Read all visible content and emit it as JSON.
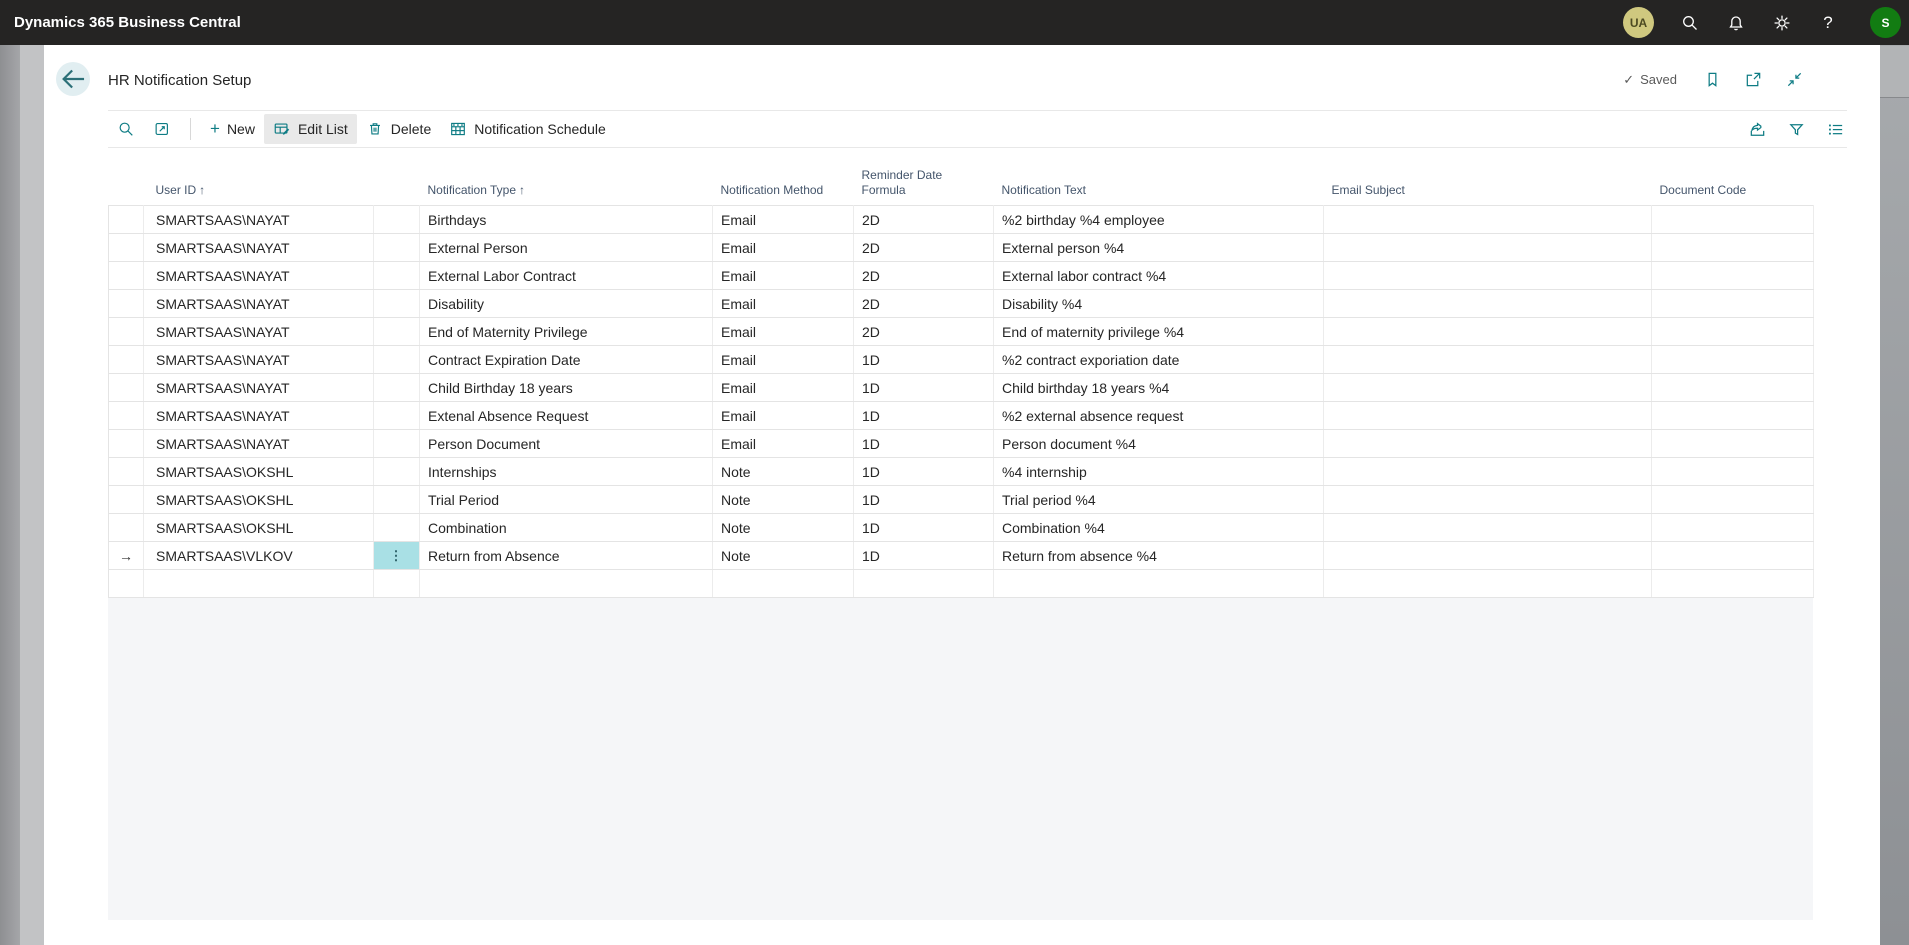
{
  "app": {
    "title": "Dynamics 365 Business Central"
  },
  "topbar": {
    "avatar_company": "UA",
    "avatar_user": "S"
  },
  "icons": {
    "sort_asc": "↑",
    "row_pointer": "→",
    "row_menu": "⋮",
    "check": "✓",
    "help": "?"
  },
  "colors": {
    "accent": "#0e7c84",
    "topbar_bg": "#252423",
    "selected_cell": "#a9e0e5",
    "active_button_bg": "#e9e9e9",
    "avatar_company_bg": "#cfc87f",
    "avatar_user_bg": "#127c12"
  },
  "page": {
    "title": "HR Notification Setup",
    "save_status": "Saved"
  },
  "toolbar": {
    "new_label": "New",
    "edit_list_label": "Edit List",
    "delete_label": "Delete",
    "notification_schedule_label": "Notification Schedule"
  },
  "table": {
    "columns": [
      {
        "key": "selector",
        "label": "",
        "sorted": false
      },
      {
        "key": "user_id",
        "label": "User ID",
        "sorted": true
      },
      {
        "key": "mini",
        "label": "",
        "sorted": false
      },
      {
        "key": "type",
        "label": "Notification Type",
        "sorted": true
      },
      {
        "key": "method",
        "label": "Notification Method",
        "sorted": false
      },
      {
        "key": "formula",
        "label": "Reminder Date Formula",
        "sorted": false
      },
      {
        "key": "text",
        "label": "Notification Text",
        "sorted": false
      },
      {
        "key": "email_subject",
        "label": "Email Subject",
        "sorted": false
      },
      {
        "key": "document_code",
        "label": "Document Code",
        "sorted": false
      }
    ],
    "rows": [
      {
        "user_id": "SMARTSAAS\\NAYAT",
        "type": "Birthdays",
        "method": "Email",
        "formula": "2D",
        "text": "%2 birthday %4 employee",
        "email_subject": "",
        "document_code": "",
        "current": false
      },
      {
        "user_id": "SMARTSAAS\\NAYAT",
        "type": "External Person",
        "method": "Email",
        "formula": "2D",
        "text": "External person %4",
        "email_subject": "",
        "document_code": "",
        "current": false
      },
      {
        "user_id": "SMARTSAAS\\NAYAT",
        "type": "External Labor Contract",
        "method": "Email",
        "formula": "2D",
        "text": "External labor contract %4",
        "email_subject": "",
        "document_code": "",
        "current": false
      },
      {
        "user_id": "SMARTSAAS\\NAYAT",
        "type": "Disability",
        "method": "Email",
        "formula": "2D",
        "text": "Disability %4",
        "email_subject": "",
        "document_code": "",
        "current": false
      },
      {
        "user_id": "SMARTSAAS\\NAYAT",
        "type": "End of Maternity Privilege",
        "method": "Email",
        "formula": "2D",
        "text": "End of maternity privilege %4",
        "email_subject": "",
        "document_code": "",
        "current": false
      },
      {
        "user_id": "SMARTSAAS\\NAYAT",
        "type": "Contract Expiration Date",
        "method": "Email",
        "formula": "1D",
        "text": "%2 contract exporiation date",
        "email_subject": "",
        "document_code": "",
        "current": false
      },
      {
        "user_id": "SMARTSAAS\\NAYAT",
        "type": "Child Birthday 18 years",
        "method": "Email",
        "formula": "1D",
        "text": "Child birthday 18 years %4",
        "email_subject": "",
        "document_code": "",
        "current": false
      },
      {
        "user_id": "SMARTSAAS\\NAYAT",
        "type": "Extenal Absence Request",
        "method": "Email",
        "formula": "1D",
        "text": "%2 external absence request",
        "email_subject": "",
        "document_code": "",
        "current": false
      },
      {
        "user_id": "SMARTSAAS\\NAYAT",
        "type": "Person Document",
        "method": "Email",
        "formula": "1D",
        "text": "Person document %4",
        "email_subject": "",
        "document_code": "",
        "current": false
      },
      {
        "user_id": "SMARTSAAS\\OKSHL",
        "type": "Internships",
        "method": "Note",
        "formula": "1D",
        "text": "%4 internship",
        "email_subject": "",
        "document_code": "",
        "current": false
      },
      {
        "user_id": "SMARTSAAS\\OKSHL",
        "type": "Trial Period",
        "method": "Note",
        "formula": "1D",
        "text": "Trial period %4",
        "email_subject": "",
        "document_code": "",
        "current": false
      },
      {
        "user_id": "SMARTSAAS\\OKSHL",
        "type": "Combination",
        "method": "Note",
        "formula": "1D",
        "text": "Combination %4",
        "email_subject": "",
        "document_code": "",
        "current": false
      },
      {
        "user_id": "SMARTSAAS\\VLKOV",
        "type": "Return from Absence",
        "method": "Note",
        "formula": "1D",
        "text": "Return from absence %4",
        "email_subject": "",
        "document_code": "",
        "current": true
      },
      {
        "user_id": "",
        "type": "",
        "method": "",
        "formula": "",
        "text": "",
        "email_subject": "",
        "document_code": "",
        "current": false
      }
    ]
  }
}
